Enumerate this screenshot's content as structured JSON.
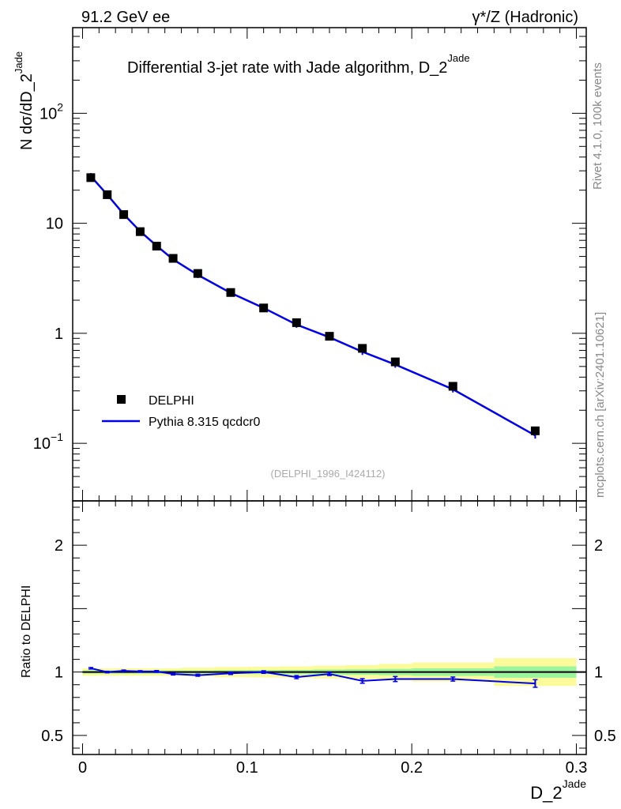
{
  "header": {
    "left": "91.2 GeV ee",
    "right": "γ*/Z (Hadronic)"
  },
  "side": {
    "rivet": "Rivet 4.1.0,  100k events",
    "site": "mcplots.cern.ch [arXiv:2401.10621]"
  },
  "colors": {
    "data": "#000000",
    "mc": "#0000ee",
    "band_inner": "#9cf59c",
    "band_outer": "#fbfb9c"
  },
  "chart_data": [
    {
      "type": "scatter",
      "role": "main",
      "title": "Differential 3-jet rate with Jade algorithm, D_2",
      "title_sup": "Jade",
      "ylabel": "N  dσ/dD_2",
      "ylabel_sup": "Jade",
      "xlim": [
        -0.006,
        0.306
      ],
      "ylim": [
        0.03,
        600
      ],
      "yscale": "log",
      "ytick_labels": [
        {
          "value": 0.1,
          "base": "10",
          "exp": "−1"
        },
        {
          "value": 1,
          "base": "1",
          "exp": ""
        },
        {
          "value": 10,
          "base": "10",
          "exp": ""
        },
        {
          "value": 100,
          "base": "10",
          "exp": "2"
        }
      ],
      "watermark": "(DELPHI_1996_I424112)",
      "legend_position": "lower-left",
      "series": [
        {
          "name": "DELPHI",
          "kind": "markers",
          "x": [
            0.005,
            0.015,
            0.025,
            0.035,
            0.045,
            0.055,
            0.07,
            0.09,
            0.11,
            0.13,
            0.15,
            0.17,
            0.19,
            0.225,
            0.275
          ],
          "y": [
            26.0,
            18.2,
            12.0,
            8.4,
            6.2,
            4.8,
            3.5,
            2.35,
            1.7,
            1.25,
            0.94,
            0.73,
            0.55,
            0.33,
            0.13
          ]
        },
        {
          "name": "Pythia 8.315 qcdcr0",
          "kind": "line",
          "x": [
            0.005,
            0.015,
            0.025,
            0.035,
            0.045,
            0.055,
            0.07,
            0.09,
            0.11,
            0.13,
            0.15,
            0.17,
            0.19,
            0.225,
            0.275
          ],
          "y": [
            26.8,
            18.2,
            12.1,
            8.45,
            6.25,
            4.7,
            3.4,
            2.33,
            1.7,
            1.2,
            0.92,
            0.68,
            0.52,
            0.31,
            0.118
          ]
        }
      ]
    },
    {
      "type": "line",
      "role": "ratio",
      "ylabel": "Ratio to DELPHI",
      "xlabel": "D_2",
      "xlabel_sup": "Jade",
      "xlim": [
        -0.006,
        0.306
      ],
      "ylim": [
        0.35,
        2.35
      ],
      "yticks": [
        0.5,
        1,
        2
      ],
      "ytick_labels": [
        "0.5",
        "1",
        "2"
      ],
      "xticks": [
        0,
        0.1,
        0.2,
        0.3
      ],
      "xtick_labels": [
        "0",
        "0.1",
        "0.2",
        "0.3"
      ],
      "reference": 1,
      "band_bins": [
        {
          "x0": 0.0,
          "x1": 0.01,
          "inner": 0.012,
          "outer": 0.03
        },
        {
          "x0": 0.01,
          "x1": 0.02,
          "inner": 0.012,
          "outer": 0.03
        },
        {
          "x0": 0.02,
          "x1": 0.03,
          "inner": 0.012,
          "outer": 0.03
        },
        {
          "x0": 0.03,
          "x1": 0.04,
          "inner": 0.012,
          "outer": 0.03
        },
        {
          "x0": 0.04,
          "x1": 0.05,
          "inner": 0.012,
          "outer": 0.03
        },
        {
          "x0": 0.05,
          "x1": 0.06,
          "inner": 0.012,
          "outer": 0.03
        },
        {
          "x0": 0.06,
          "x1": 0.08,
          "inner": 0.012,
          "outer": 0.035
        },
        {
          "x0": 0.08,
          "x1": 0.1,
          "inner": 0.014,
          "outer": 0.04
        },
        {
          "x0": 0.1,
          "x1": 0.12,
          "inner": 0.015,
          "outer": 0.042
        },
        {
          "x0": 0.12,
          "x1": 0.14,
          "inner": 0.017,
          "outer": 0.045
        },
        {
          "x0": 0.14,
          "x1": 0.16,
          "inner": 0.02,
          "outer": 0.05
        },
        {
          "x0": 0.16,
          "x1": 0.18,
          "inner": 0.022,
          "outer": 0.055
        },
        {
          "x0": 0.18,
          "x1": 0.2,
          "inner": 0.025,
          "outer": 0.065
        },
        {
          "x0": 0.2,
          "x1": 0.25,
          "inner": 0.03,
          "outer": 0.075
        },
        {
          "x0": 0.25,
          "x1": 0.3,
          "inner": 0.045,
          "outer": 0.11
        }
      ],
      "series": [
        {
          "name": "Pythia 8.315 qcdcr0 / DELPHI",
          "x": [
            0.005,
            0.015,
            0.025,
            0.035,
            0.045,
            0.055,
            0.07,
            0.09,
            0.11,
            0.13,
            0.15,
            0.17,
            0.19,
            0.225,
            0.275
          ],
          "y": [
            1.03,
            1.0,
            1.01,
            1.005,
            1.005,
            0.985,
            0.975,
            0.99,
            1.0,
            0.96,
            0.985,
            0.93,
            0.945,
            0.945,
            0.91
          ],
          "err": [
            0.006,
            0.006,
            0.006,
            0.006,
            0.007,
            0.008,
            0.008,
            0.009,
            0.01,
            0.012,
            0.012,
            0.018,
            0.02,
            0.016,
            0.03
          ]
        }
      ]
    }
  ]
}
